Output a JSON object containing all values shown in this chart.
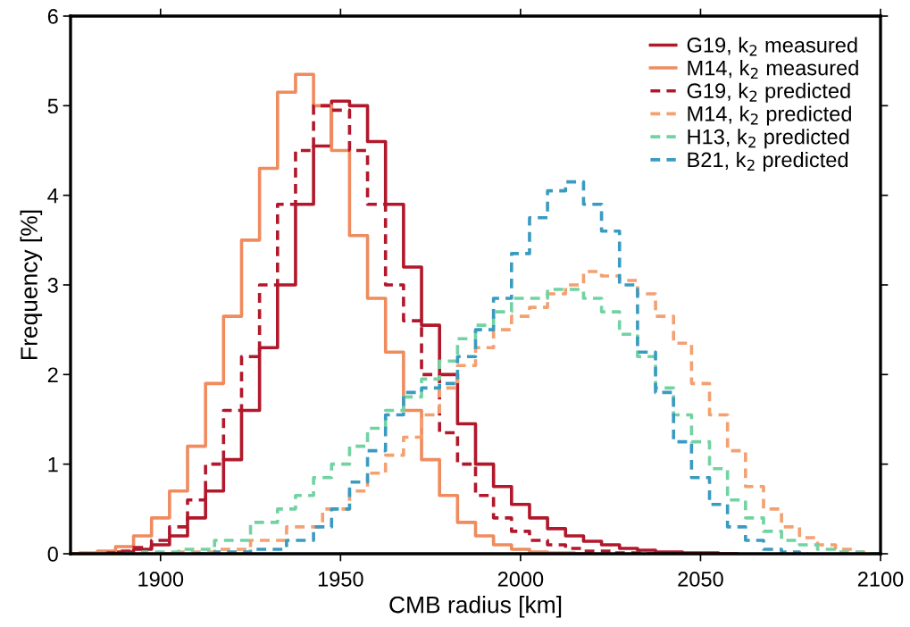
{
  "chart_data": {
    "type": "step",
    "xlabel": "CMB radius [km]",
    "ylabel": "Frequency [%]",
    "xlim": [
      1875,
      2100
    ],
    "xticks": [
      1900,
      1950,
      2000,
      2050,
      2100
    ],
    "ylim": [
      0,
      6
    ],
    "yticks": [
      0,
      1,
      2,
      3,
      4,
      5,
      6
    ],
    "grid": false,
    "legend": "top right",
    "series": [
      {
        "name": "G19, k$_{2}$ measured",
        "color": "#b2182b",
        "line_style": "solid",
        "x": [
          1885,
          1890,
          1895,
          1900,
          1905,
          1910,
          1915,
          1920,
          1925,
          1930,
          1935,
          1940,
          1945,
          1950,
          1955,
          1960,
          1965,
          1970,
          1975,
          1980,
          1985,
          1990,
          1995,
          2000,
          2005,
          2010,
          2015,
          2020,
          2025,
          2030,
          2035,
          2040,
          2050,
          2060
        ],
        "values": [
          0.01,
          0.02,
          0.05,
          0.1,
          0.2,
          0.4,
          0.7,
          1.05,
          1.6,
          2.3,
          3.0,
          3.9,
          4.55,
          5.05,
          5.0,
          4.6,
          3.9,
          3.2,
          2.55,
          2.0,
          1.45,
          1.0,
          0.75,
          0.55,
          0.4,
          0.28,
          0.2,
          0.14,
          0.1,
          0.06,
          0.04,
          0.02,
          0.01,
          0
        ]
      },
      {
        "name": "M14, k$_{2}$ measured",
        "color": "#f08b5e",
        "line_style": "solid",
        "x": [
          1875,
          1880,
          1885,
          1890,
          1895,
          1900,
          1905,
          1910,
          1915,
          1920,
          1925,
          1930,
          1935,
          1940,
          1945,
          1950,
          1955,
          1960,
          1965,
          1970,
          1975,
          1980,
          1985,
          1990,
          1995,
          2000,
          2005,
          2010,
          2020
        ],
        "values": [
          0,
          0.01,
          0.03,
          0.08,
          0.2,
          0.4,
          0.7,
          1.2,
          1.9,
          2.65,
          3.5,
          4.3,
          5.15,
          5.35,
          5.0,
          4.5,
          3.55,
          2.85,
          2.25,
          1.6,
          1.05,
          0.65,
          0.35,
          0.2,
          0.1,
          0.05,
          0.02,
          0.01,
          0
        ]
      },
      {
        "name": "G19, k$_{2}$ predicted",
        "color": "#b2182b",
        "line_style": "dashed",
        "x": [
          1885,
          1890,
          1895,
          1900,
          1905,
          1910,
          1915,
          1920,
          1925,
          1930,
          1935,
          1940,
          1945,
          1950,
          1955,
          1960,
          1965,
          1970,
          1975,
          1980,
          1985,
          1990,
          1995,
          2000,
          2005,
          2010,
          2015,
          2020,
          2030,
          2040
        ],
        "values": [
          0.01,
          0.03,
          0.07,
          0.15,
          0.3,
          0.6,
          1.0,
          1.6,
          2.2,
          3.0,
          3.9,
          4.5,
          5.0,
          4.95,
          4.5,
          3.9,
          3.0,
          2.6,
          2.0,
          1.35,
          1.0,
          0.65,
          0.4,
          0.25,
          0.15,
          0.1,
          0.06,
          0.03,
          0.01,
          0
        ]
      },
      {
        "name": "M14, k$_{2}$ predicted",
        "color": "#f4a070",
        "line_style": "dashed",
        "x": [
          1900,
          1910,
          1920,
          1930,
          1940,
          1950,
          1955,
          1960,
          1965,
          1970,
          1975,
          1980,
          1985,
          1990,
          1995,
          2000,
          2005,
          2010,
          2015,
          2020,
          2025,
          2030,
          2035,
          2040,
          2045,
          2050,
          2055,
          2060,
          2065,
          2070,
          2075,
          2080,
          2085,
          2090,
          2095,
          2100
        ],
        "values": [
          0,
          0.02,
          0.05,
          0.15,
          0.3,
          0.5,
          0.7,
          0.9,
          1.1,
          1.3,
          1.55,
          1.85,
          2.1,
          2.3,
          2.5,
          2.65,
          2.75,
          2.9,
          3.0,
          3.15,
          3.1,
          3.05,
          2.9,
          2.65,
          2.35,
          1.9,
          1.55,
          1.15,
          0.75,
          0.5,
          0.3,
          0.18,
          0.1,
          0.05,
          0.02,
          0
        ]
      },
      {
        "name": "H13, k$_{2}$ predicted",
        "color": "#72d3a2",
        "line_style": "dashed",
        "x": [
          1890,
          1900,
          1910,
          1920,
          1930,
          1935,
          1940,
          1945,
          1950,
          1955,
          1960,
          1965,
          1970,
          1975,
          1980,
          1985,
          1990,
          1995,
          2000,
          2005,
          2010,
          2015,
          2020,
          2025,
          2030,
          2035,
          2040,
          2045,
          2050,
          2055,
          2060,
          2065,
          2070,
          2075,
          2080,
          2085,
          2090,
          2100
        ],
        "values": [
          0,
          0.02,
          0.05,
          0.15,
          0.35,
          0.5,
          0.65,
          0.85,
          1.0,
          1.2,
          1.4,
          1.6,
          1.75,
          1.95,
          2.15,
          2.4,
          2.55,
          2.7,
          2.85,
          2.85,
          2.95,
          2.95,
          2.85,
          2.7,
          2.45,
          2.2,
          1.85,
          1.55,
          1.25,
          0.95,
          0.6,
          0.4,
          0.25,
          0.15,
          0.1,
          0.05,
          0.02,
          0
        ]
      },
      {
        "name": "B21, k$_{2}$ predicted",
        "color": "#3a9bc1",
        "line_style": "dashed",
        "x": [
          1910,
          1920,
          1930,
          1940,
          1945,
          1950,
          1955,
          1960,
          1965,
          1970,
          1975,
          1980,
          1985,
          1990,
          1995,
          2000,
          2005,
          2010,
          2015,
          2020,
          2025,
          2030,
          2035,
          2040,
          2045,
          2050,
          2055,
          2060,
          2065,
          2070,
          2075,
          2080
        ],
        "values": [
          0,
          0.02,
          0.05,
          0.15,
          0.3,
          0.5,
          0.8,
          1.15,
          1.55,
          1.8,
          1.85,
          1.9,
          2.2,
          2.5,
          2.85,
          3.35,
          3.75,
          4.05,
          4.15,
          3.9,
          3.6,
          3.0,
          2.25,
          1.8,
          1.25,
          0.85,
          0.55,
          0.3,
          0.15,
          0.05,
          0.02,
          0
        ]
      }
    ]
  }
}
